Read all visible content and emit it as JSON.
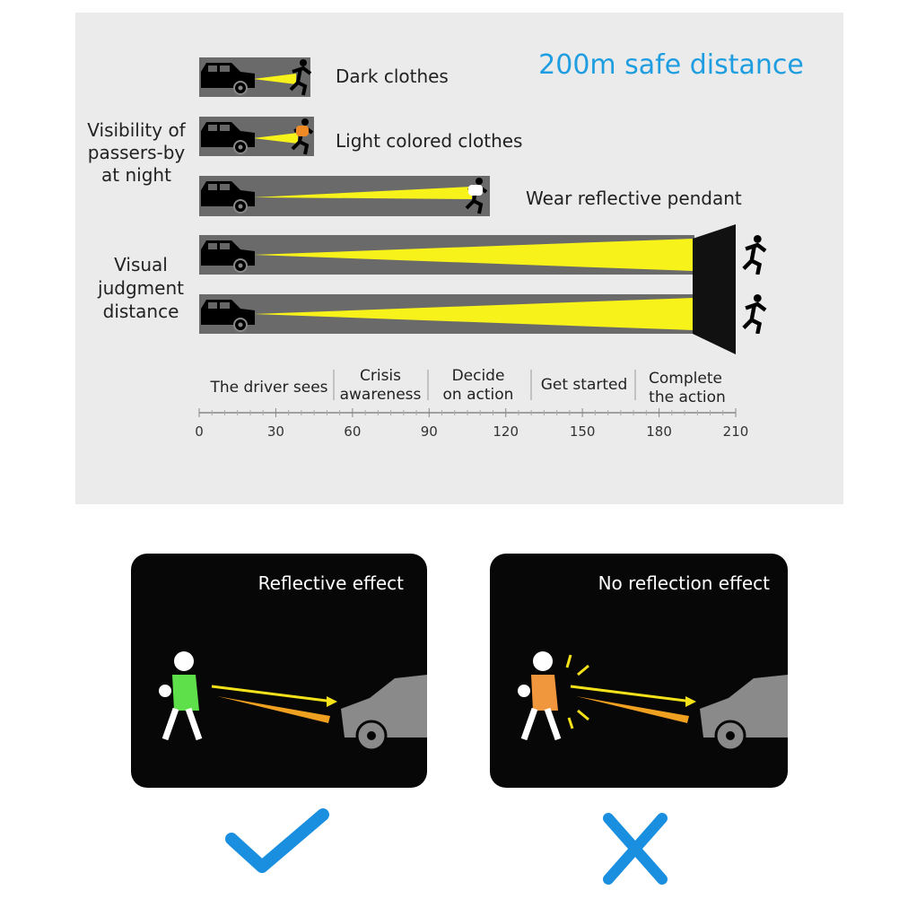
{
  "top_panel": {
    "headline": "200m safe distance",
    "group_labels": {
      "visibility": [
        "Visibility of",
        "passers-by",
        "at night"
      ],
      "judgment": [
        "Visual",
        "judgment",
        "distance"
      ]
    },
    "rows": [
      {
        "label": "Dark clothes",
        "clothing_color": "#222222"
      },
      {
        "label": "Light colored clothes",
        "clothing_color": "#f08a24"
      },
      {
        "label": "Wear reflective pendant",
        "clothing_color": "#ffffff"
      }
    ],
    "phases": [
      [
        "The driver sees"
      ],
      [
        "Crisis",
        "awareness"
      ],
      [
        "Decide",
        "on action"
      ],
      [
        "Get started"
      ],
      [
        "Complete",
        "the action"
      ]
    ],
    "axis_ticks": [
      "0",
      "30",
      "60",
      "90",
      "120",
      "150",
      "180",
      "210"
    ],
    "colors": {
      "headline": "#1e9ee0",
      "beam": "#f6f21a",
      "road": "#6a6a6a",
      "panel": "#ebebeb"
    }
  },
  "cards": [
    {
      "title": "Reflective effect",
      "shirt_color": "#5ee04a",
      "verdict": "check-icon"
    },
    {
      "title": "No reflection effect",
      "shirt_color": "#f0963c",
      "verdict": "cross-icon"
    }
  ],
  "verdict_color": "#1a8fe0"
}
